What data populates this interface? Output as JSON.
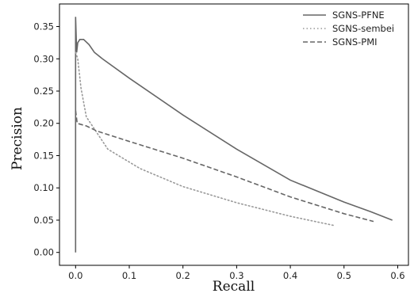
{
  "chart_data": {
    "type": "line",
    "xlabel": "Recall",
    "ylabel": "Precision",
    "xlim": [
      -0.03,
      0.62
    ],
    "ylim": [
      -0.02,
      0.385
    ],
    "xticks": [
      0.0,
      0.1,
      0.2,
      0.3,
      0.4,
      0.5,
      0.6
    ],
    "xtick_labels": [
      "0.0",
      "0.1",
      "0.2",
      "0.3",
      "0.4",
      "0.5",
      "0.6"
    ],
    "yticks": [
      0.0,
      0.05,
      0.1,
      0.15,
      0.2,
      0.25,
      0.3,
      0.35
    ],
    "ytick_labels": [
      "0.00",
      "0.05",
      "0.10",
      "0.15",
      "0.20",
      "0.25",
      "0.30",
      "0.35"
    ],
    "grid": false,
    "legend_position": "top-right",
    "series": [
      {
        "name": "SGNS-PFNE",
        "style": "solid",
        "color": "#666666",
        "points": [
          [
            0.0,
            0.0
          ],
          [
            0.0,
            0.365
          ],
          [
            0.002,
            0.31
          ],
          [
            0.004,
            0.325
          ],
          [
            0.008,
            0.33
          ],
          [
            0.015,
            0.33
          ],
          [
            0.025,
            0.322
          ],
          [
            0.035,
            0.31
          ],
          [
            0.05,
            0.3
          ],
          [
            0.1,
            0.27
          ],
          [
            0.2,
            0.213
          ],
          [
            0.3,
            0.16
          ],
          [
            0.4,
            0.112
          ],
          [
            0.5,
            0.078
          ],
          [
            0.55,
            0.063
          ],
          [
            0.59,
            0.05
          ]
        ]
      },
      {
        "name": "SGNS-sembei",
        "style": "dotted",
        "color": "#999999",
        "points": [
          [
            0.0,
            0.31
          ],
          [
            0.004,
            0.3
          ],
          [
            0.01,
            0.255
          ],
          [
            0.02,
            0.21
          ],
          [
            0.04,
            0.185
          ],
          [
            0.06,
            0.16
          ],
          [
            0.12,
            0.13
          ],
          [
            0.2,
            0.102
          ],
          [
            0.3,
            0.077
          ],
          [
            0.4,
            0.056
          ],
          [
            0.48,
            0.042
          ]
        ]
      },
      {
        "name": "SGNS-PMI",
        "style": "dashed",
        "color": "#666666",
        "points": [
          [
            0.0,
            0.22
          ],
          [
            0.003,
            0.2
          ],
          [
            0.02,
            0.196
          ],
          [
            0.04,
            0.188
          ],
          [
            0.1,
            0.172
          ],
          [
            0.2,
            0.146
          ],
          [
            0.3,
            0.117
          ],
          [
            0.4,
            0.086
          ],
          [
            0.5,
            0.06
          ],
          [
            0.555,
            0.048
          ]
        ]
      }
    ]
  }
}
